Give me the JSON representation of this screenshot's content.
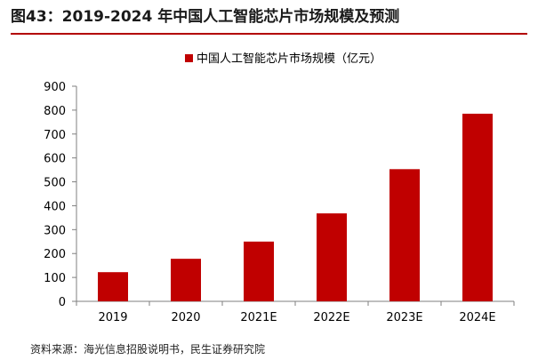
{
  "header": {
    "title": "图43：2019-2024 年中国人工智能芯片市场规模及预测"
  },
  "footer": {
    "source": "资料来源：海光信息招股说明书，民生证券研究院"
  },
  "colors": {
    "bar": "#c00000",
    "axis": "#7f7f7f",
    "title_rule": "#b30000"
  },
  "chart_data": {
    "type": "bar",
    "title": "",
    "xlabel": "",
    "ylabel": "",
    "categories": [
      "2019",
      "2020",
      "2021E",
      "2022E",
      "2023E",
      "2024E"
    ],
    "series": [
      {
        "name": "中国人工智能芯片市场规模（亿元）",
        "values": [
          122,
          178,
          250,
          368,
          553,
          785
        ]
      }
    ],
    "ylim": [
      0,
      900
    ],
    "yticks": [
      0,
      100,
      200,
      300,
      400,
      500,
      600,
      700,
      800,
      900
    ],
    "grid": false,
    "legend_position": "top-center"
  }
}
